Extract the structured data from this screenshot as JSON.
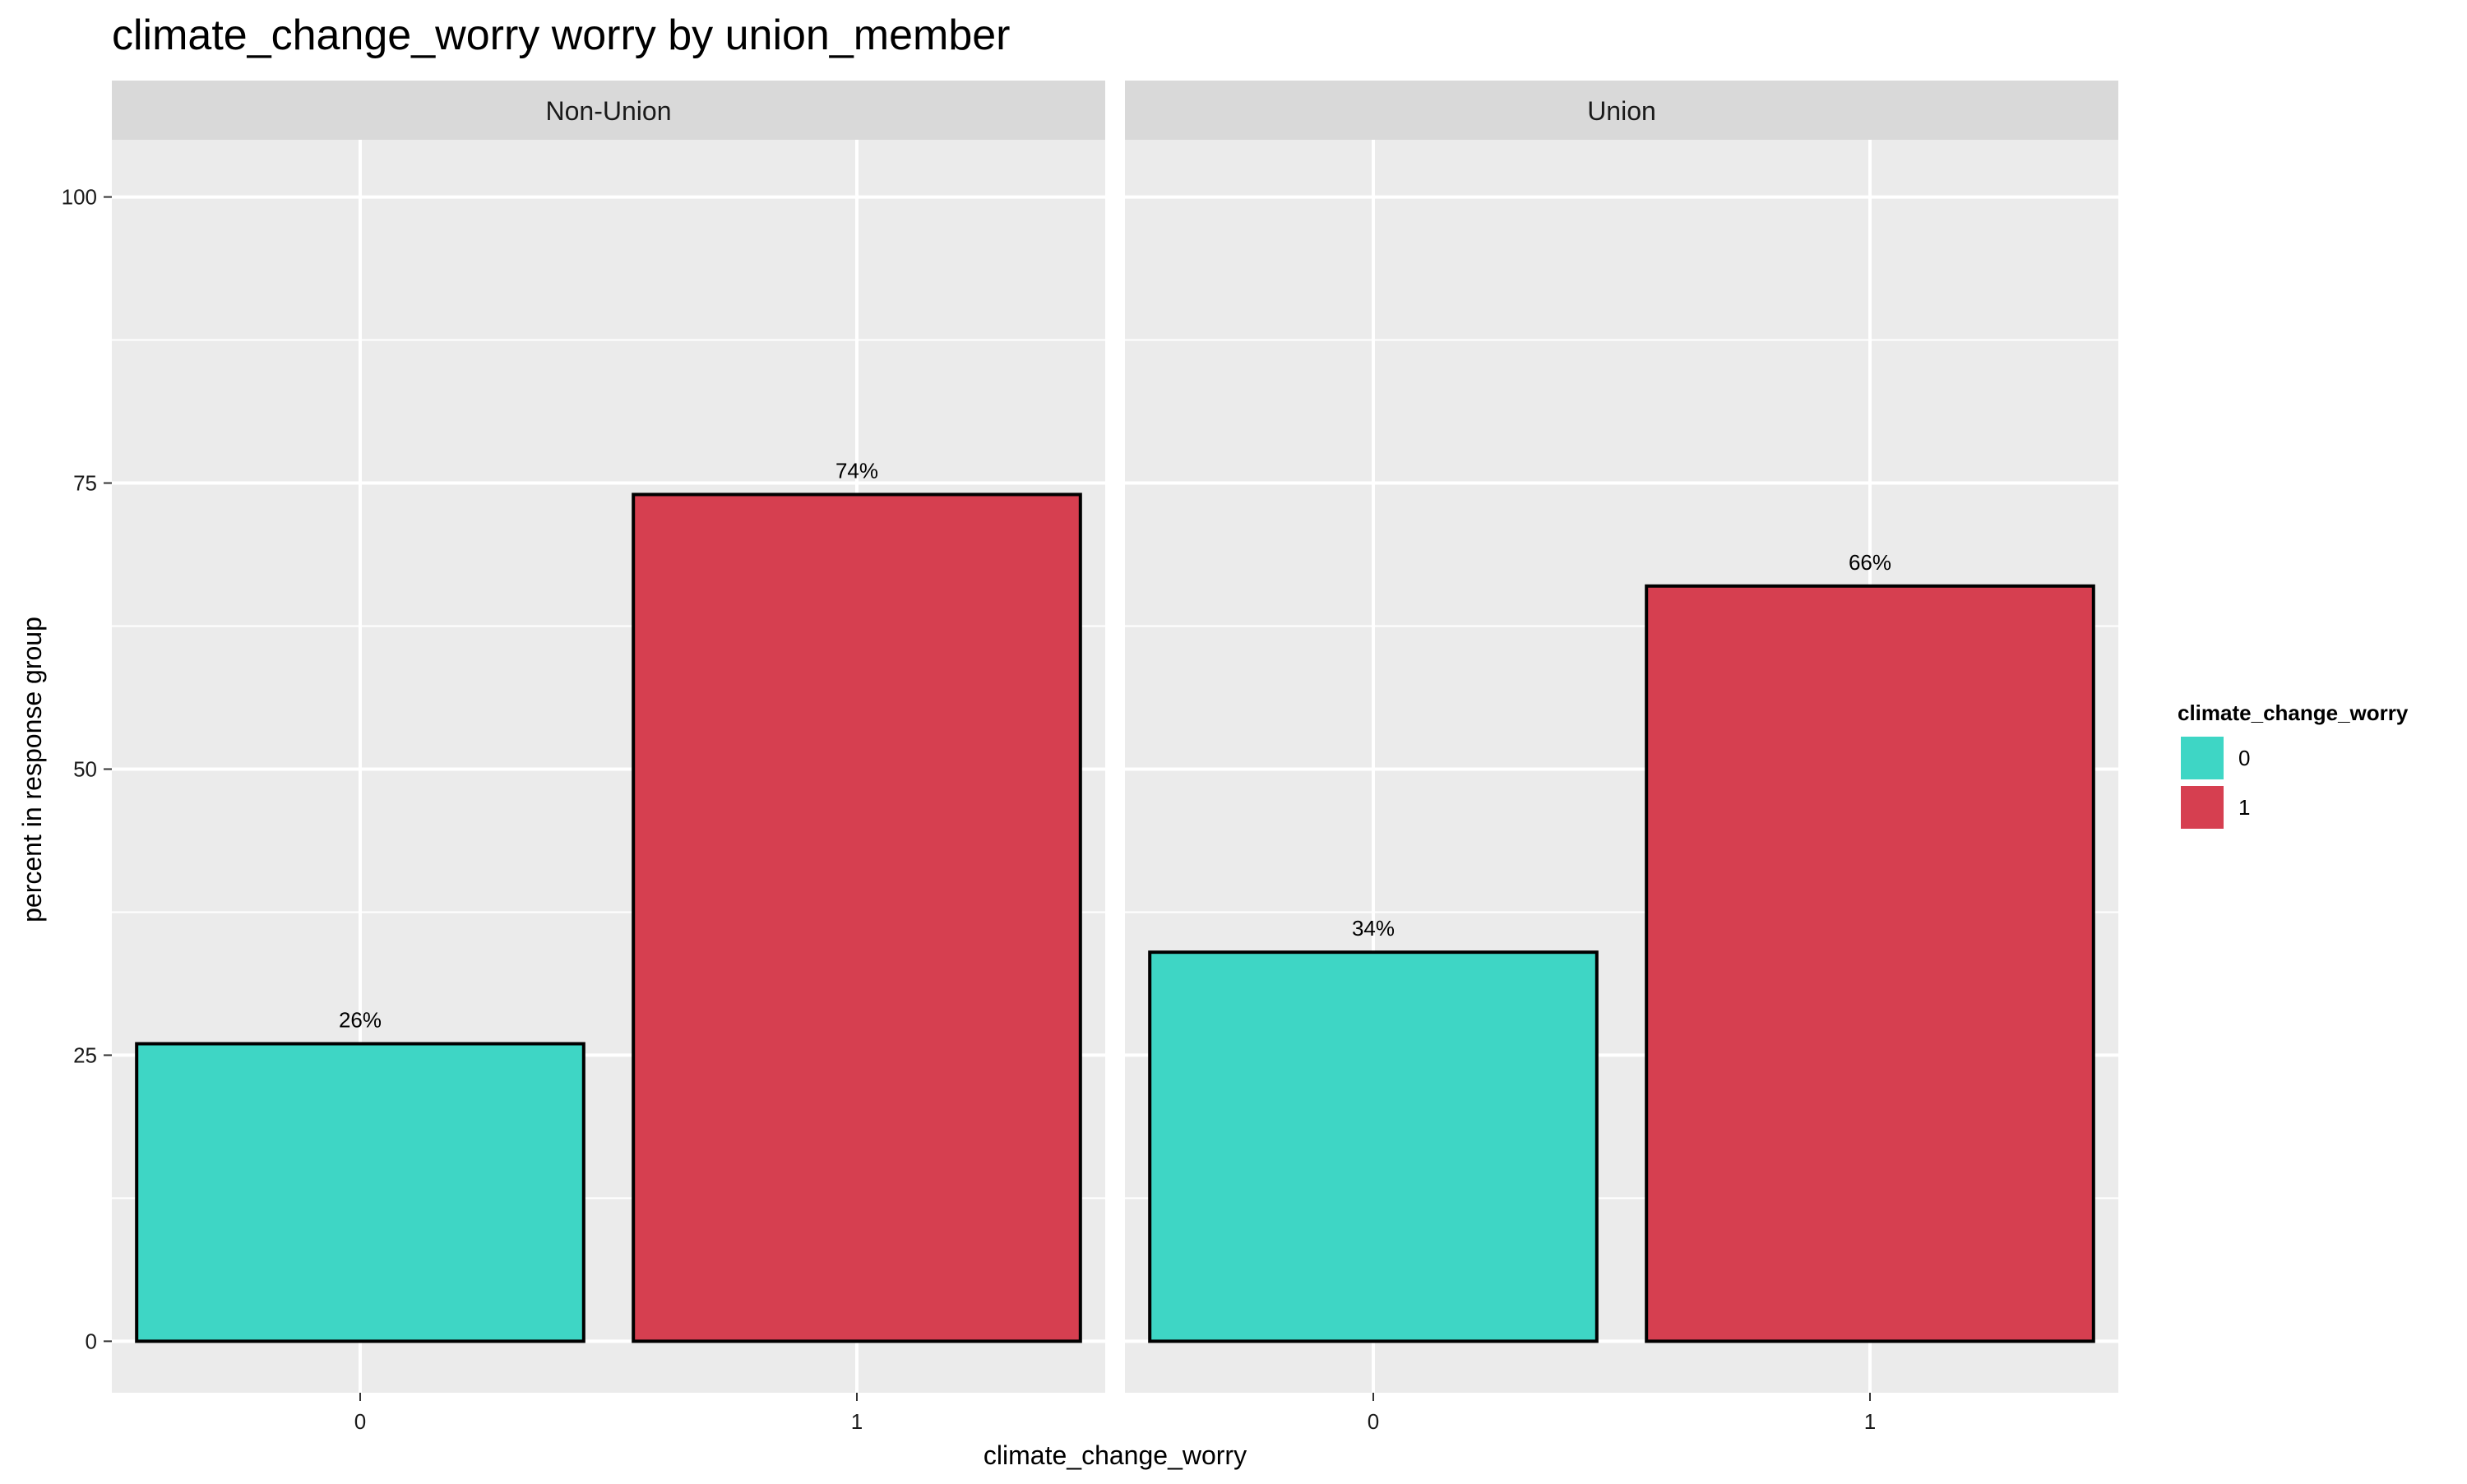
{
  "chart_data": {
    "type": "bar",
    "title": "climate_change_worry worry by union_member",
    "xlabel": "climate_change_worry",
    "ylabel": "percent in response group",
    "ylim": [
      -4.5,
      105
    ],
    "y_ticks": [
      0,
      25,
      50,
      75,
      100
    ],
    "categories": [
      "0",
      "1"
    ],
    "grid": true,
    "legend": {
      "title": "climate_change_worry",
      "position": "right",
      "entries": [
        {
          "label": "0",
          "color": "#3ED6C5"
        },
        {
          "label": "1",
          "color": "#D63F50"
        }
      ]
    },
    "facets": [
      {
        "label": "Non-Union",
        "values": [
          26,
          74
        ],
        "value_labels": [
          "26%",
          "74%"
        ]
      },
      {
        "label": "Union",
        "values": [
          34,
          66
        ],
        "value_labels": [
          "34%",
          "66%"
        ]
      }
    ]
  },
  "colors": {
    "panel_background": "#EBEBEB",
    "strip_background": "#D9D9D9",
    "grid_line": "#FFFFFF",
    "bar_outline": "#000000"
  }
}
